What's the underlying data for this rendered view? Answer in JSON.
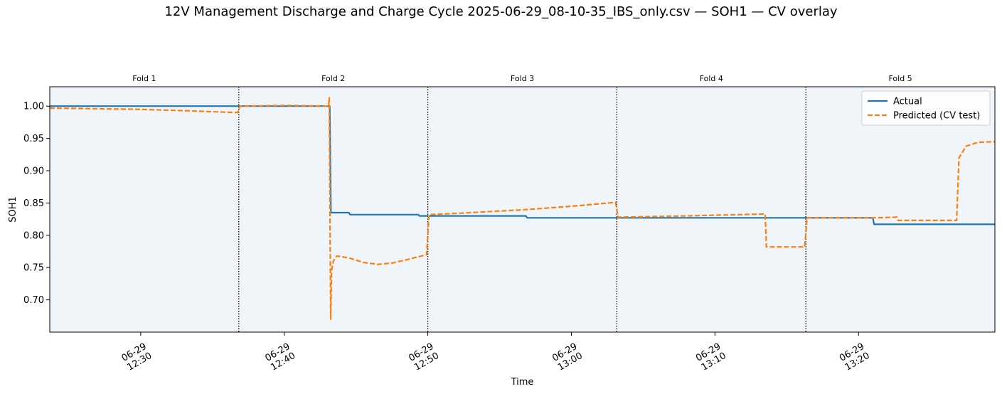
{
  "title": "12V Management  Discharge and Charge Cycle 2025-06-29_08-10-35_IBS_only.csv — SOH1 — CV overlay",
  "colors": {
    "actual": "#1f77b4",
    "predicted": "#ff7f0e",
    "fold_fill": "#f0f5fa",
    "boundary": "#000000"
  },
  "chart_data": {
    "type": "line",
    "title": "12V Management  Discharge and Charge Cycle 2025-06-29_08-10-35_IBS_only.csv — SOH1 — CV overlay",
    "xlabel": "Time",
    "ylabel": "SOH1",
    "xlim": [
      "2025-06-29 12:23:40",
      "2025-06-29 13:29:30"
    ],
    "ylim": [
      0.65,
      1.03
    ],
    "yticks": [
      0.7,
      0.75,
      0.8,
      0.85,
      0.9,
      0.95,
      1.0
    ],
    "ytick_labels": [
      "0.70",
      "0.75",
      "0.80",
      "0.85",
      "0.90",
      "0.95",
      "1.00"
    ],
    "xticks": [
      {
        "x": "2025-06-29 12:30:00",
        "label": [
          "06-29",
          "12:30"
        ]
      },
      {
        "x": "2025-06-29 12:40:00",
        "label": [
          "06-29",
          "12:40"
        ]
      },
      {
        "x": "2025-06-29 12:50:00",
        "label": [
          "06-29",
          "12:50"
        ]
      },
      {
        "x": "2025-06-29 13:00:00",
        "label": [
          "06-29",
          "13:00"
        ]
      },
      {
        "x": "2025-06-29 13:10:00",
        "label": [
          "06-29",
          "13:10"
        ]
      },
      {
        "x": "2025-06-29 13:20:00",
        "label": [
          "06-29",
          "13:20"
        ]
      }
    ],
    "folds": [
      {
        "label": "Fold 1",
        "start": "2025-06-29 12:23:40",
        "end": "2025-06-29 12:36:50"
      },
      {
        "label": "Fold 2",
        "start": "2025-06-29 12:36:50",
        "end": "2025-06-29 12:50:00"
      },
      {
        "label": "Fold 3",
        "start": "2025-06-29 12:50:00",
        "end": "2025-06-29 13:03:10"
      },
      {
        "label": "Fold 4",
        "start": "2025-06-29 13:03:10",
        "end": "2025-06-29 13:16:20"
      },
      {
        "label": "Fold 5",
        "start": "2025-06-29 13:16:20",
        "end": "2025-06-29 13:29:30"
      }
    ],
    "fold_boundaries": [
      "2025-06-29 12:36:50",
      "2025-06-29 12:50:00",
      "2025-06-29 13:03:10",
      "2025-06-29 13:16:20"
    ],
    "legend": {
      "position": "upper right"
    },
    "grid": false,
    "series": [
      {
        "name": "Actual",
        "style": "solid",
        "points": [
          [
            "2025-06-29 12:23:40",
            1.0
          ],
          [
            "2025-06-29 12:43:10",
            1.0
          ],
          [
            "2025-06-29 12:43:15",
            0.835
          ],
          [
            "2025-06-29 12:44:30",
            0.835
          ],
          [
            "2025-06-29 12:44:35",
            0.832
          ],
          [
            "2025-06-29 12:49:20",
            0.832
          ],
          [
            "2025-06-29 12:49:25",
            0.83
          ],
          [
            "2025-06-29 12:56:50",
            0.83
          ],
          [
            "2025-06-29 12:56:55",
            0.827
          ],
          [
            "2025-06-29 13:21:00",
            0.827
          ],
          [
            "2025-06-29 13:21:05",
            0.817
          ],
          [
            "2025-06-29 13:29:30",
            0.817
          ]
        ]
      },
      {
        "name": "Predicted (CV test)",
        "style": "dashed",
        "points": [
          [
            "2025-06-29 12:23:40",
            0.997
          ],
          [
            "2025-06-29 12:27:00",
            0.996
          ],
          [
            "2025-06-29 12:30:00",
            0.995
          ],
          [
            "2025-06-29 12:33:00",
            0.993
          ],
          [
            "2025-06-29 12:36:45",
            0.99
          ],
          [
            "2025-06-29 12:36:55",
            1.0
          ],
          [
            "2025-06-29 12:40:00",
            1.001
          ],
          [
            "2025-06-29 12:43:05",
            1.0
          ],
          [
            "2025-06-29 12:43:08",
            1.013
          ],
          [
            "2025-06-29 12:43:11",
            0.835
          ],
          [
            "2025-06-29 12:43:14",
            0.67
          ],
          [
            "2025-06-29 12:43:18",
            0.745
          ],
          [
            "2025-06-29 12:43:25",
            0.76
          ],
          [
            "2025-06-29 12:43:40",
            0.768
          ],
          [
            "2025-06-29 12:44:30",
            0.765
          ],
          [
            "2025-06-29 12:45:30",
            0.758
          ],
          [
            "2025-06-29 12:46:30",
            0.755
          ],
          [
            "2025-06-29 12:47:30",
            0.757
          ],
          [
            "2025-06-29 12:48:30",
            0.762
          ],
          [
            "2025-06-29 12:49:55",
            0.77
          ],
          [
            "2025-06-29 12:50:05",
            0.832
          ],
          [
            "2025-06-29 12:53:00",
            0.835
          ],
          [
            "2025-06-29 12:57:00",
            0.84
          ],
          [
            "2025-06-29 13:00:00",
            0.845
          ],
          [
            "2025-06-29 13:03:05",
            0.851
          ],
          [
            "2025-06-29 13:03:15",
            0.828
          ],
          [
            "2025-06-29 13:08:00",
            0.83
          ],
          [
            "2025-06-29 13:13:30",
            0.833
          ],
          [
            "2025-06-29 13:13:35",
            0.782
          ],
          [
            "2025-06-29 13:16:15",
            0.782
          ],
          [
            "2025-06-29 13:16:25",
            0.827
          ],
          [
            "2025-06-29 13:21:00",
            0.827
          ],
          [
            "2025-06-29 13:22:40",
            0.828
          ],
          [
            "2025-06-29 13:22:45",
            0.823
          ],
          [
            "2025-06-29 13:25:00",
            0.823
          ],
          [
            "2025-06-29 13:26:50",
            0.823
          ],
          [
            "2025-06-29 13:27:00",
            0.92
          ],
          [
            "2025-06-29 13:27:30",
            0.938
          ],
          [
            "2025-06-29 13:28:20",
            0.944
          ],
          [
            "2025-06-29 13:29:30",
            0.945
          ]
        ]
      }
    ]
  }
}
